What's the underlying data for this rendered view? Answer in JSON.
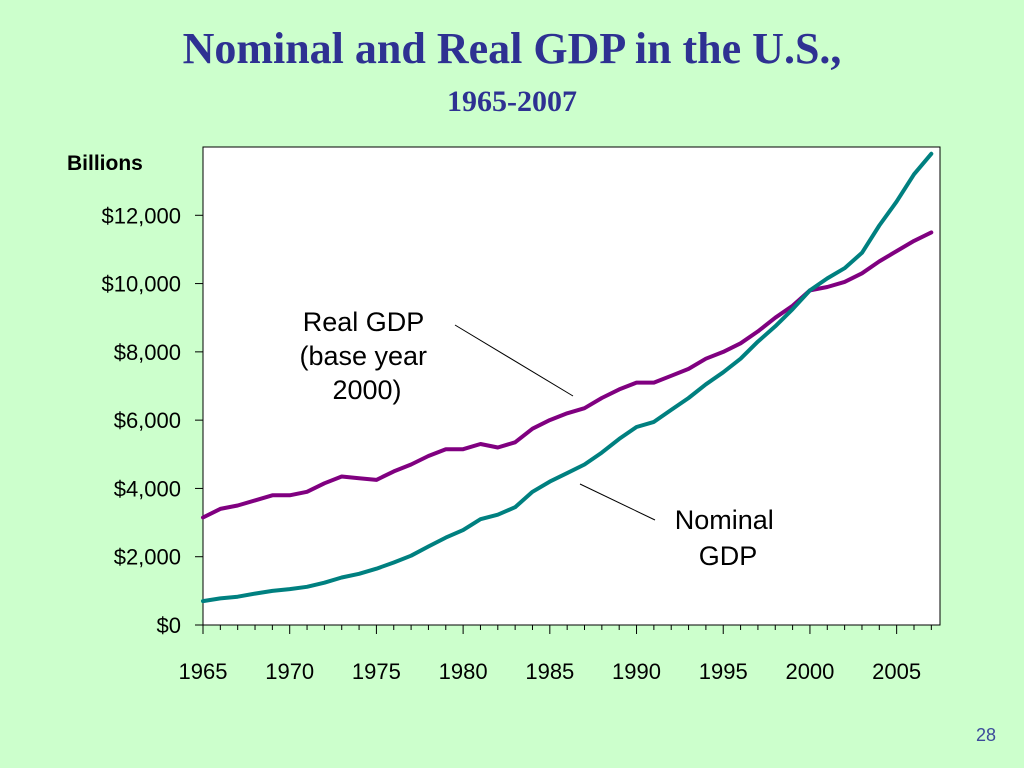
{
  "slide": {
    "title": "Nominal and Real GDP in the U.S.,",
    "subtitle": "1965-2007",
    "page_number": "28",
    "background_color": "#ccffcc",
    "title_color": "#2e3192"
  },
  "chart_data": {
    "type": "line",
    "ylabel": "Billions",
    "ylim": [
      0,
      14000
    ],
    "xlim": [
      1965,
      2007.5
    ],
    "yticks": [
      0,
      2000,
      4000,
      6000,
      8000,
      10000,
      12000
    ],
    "ytick_labels": [
      "$0",
      "$2,000",
      "$4,000",
      "$6,000",
      "$8,000",
      "$10,000",
      "$12,000"
    ],
    "xticks": [
      1965,
      1970,
      1975,
      1980,
      1985,
      1990,
      1995,
      2000,
      2005
    ],
    "xtick_labels": [
      "1965",
      "1970",
      "1975",
      "1980",
      "1985",
      "1990",
      "1995",
      "2000",
      "2005"
    ],
    "grid": false,
    "series": [
      {
        "key": "real",
        "color": "#800080",
        "x": [
          1965,
          1966,
          1967,
          1968,
          1969,
          1970,
          1971,
          1972,
          1973,
          1974,
          1975,
          1976,
          1977,
          1978,
          1979,
          1980,
          1981,
          1982,
          1983,
          1984,
          1985,
          1986,
          1987,
          1988,
          1989,
          1990,
          1991,
          1992,
          1993,
          1994,
          1995,
          1996,
          1997,
          1998,
          1999,
          2000,
          2001,
          2002,
          2003,
          2004,
          2005,
          2006,
          2007
        ],
        "values": [
          3150,
          3400,
          3500,
          3650,
          3800,
          3800,
          3900,
          4150,
          4350,
          4300,
          4250,
          4500,
          4700,
          4950,
          5150,
          5150,
          5300,
          5200,
          5350,
          5750,
          6000,
          6200,
          6350,
          6650,
          6900,
          7100,
          7100,
          7300,
          7500,
          7800,
          8000,
          8250,
          8600,
          9000,
          9350,
          9800,
          9900,
          10050,
          10300,
          10650,
          10950,
          11250,
          11500
        ]
      },
      {
        "key": "nominal",
        "color": "#008080",
        "x": [
          1965,
          1966,
          1967,
          1968,
          1969,
          1970,
          1971,
          1972,
          1973,
          1974,
          1975,
          1976,
          1977,
          1978,
          1979,
          1980,
          1981,
          1982,
          1983,
          1984,
          1985,
          1986,
          1987,
          1988,
          1989,
          1990,
          1991,
          1992,
          1993,
          1994,
          1995,
          1996,
          1997,
          1998,
          1999,
          2000,
          2001,
          2002,
          2003,
          2004,
          2005,
          2006,
          2007
        ],
        "values": [
          700,
          780,
          830,
          920,
          1000,
          1050,
          1120,
          1240,
          1390,
          1500,
          1650,
          1830,
          2030,
          2300,
          2560,
          2780,
          3100,
          3230,
          3450,
          3900,
          4200,
          4450,
          4700,
          5050,
          5450,
          5800,
          5950,
          6300,
          6650,
          7050,
          7400,
          7800,
          8300,
          8750,
          9250,
          9800,
          10150,
          10450,
          10900,
          11700,
          12400,
          13200,
          13800
        ]
      }
    ],
    "annotations": {
      "real_label": [
        "Real GDP",
        "(base year",
        "2000)"
      ],
      "nominal_label": [
        "Nominal",
        "GDP"
      ]
    }
  }
}
